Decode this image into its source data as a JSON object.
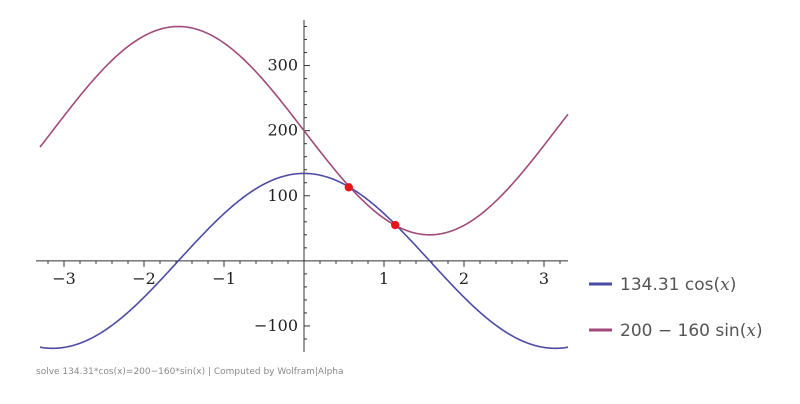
{
  "chart_data": {
    "type": "line",
    "x_range": [
      -3.3,
      3.3
    ],
    "ylim": [
      -140,
      370
    ],
    "x_ticks": [
      -3,
      -2,
      -1,
      1,
      2,
      3
    ],
    "x_tick_labels": [
      "−3",
      "−2",
      "−1",
      "1",
      "2",
      "3"
    ],
    "y_ticks": [
      -100,
      100,
      200,
      300
    ],
    "y_tick_labels": [
      "−100",
      "100",
      "200",
      "300"
    ],
    "grid": false,
    "legend_position": "right",
    "series": [
      {
        "name": "134.31 cos(x)",
        "name_parts": {
          "prefix": "134.31 cos(",
          "var": "x",
          "suffix": ")"
        },
        "function": "134.31*cos(x)",
        "color": "#4b4ba3"
      },
      {
        "name": "200 − 160 sin(x)",
        "name_parts": {
          "prefix": "200 − 160 sin(",
          "var": "x",
          "suffix": ")"
        },
        "function": "200-160*sin(x)",
        "color": "#a04a7a"
      }
    ],
    "intersections": [
      {
        "x": 0.56,
        "y": 113
      },
      {
        "x": 1.14,
        "y": 55
      }
    ],
    "intersection_color": "#e8141a"
  },
  "footer": {
    "text": "solve 134.31*cos(x)=200−160*sin(x) | Computed by Wolfram|Alpha"
  }
}
